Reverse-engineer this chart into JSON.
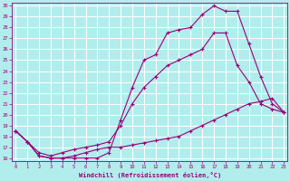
{
  "xlabel": "Windchill (Refroidissement éolien,°C)",
  "bg_color": "#b2eded",
  "grid_color": "#d0d0d0",
  "line_color": "#990077",
  "xmin": 0,
  "xmax": 23,
  "ymin": 16,
  "ymax": 30,
  "curve1_x": [
    0,
    1,
    2,
    3,
    4,
    5,
    6,
    7,
    8,
    9,
    10,
    11,
    12,
    13,
    14,
    15,
    16,
    17,
    18,
    19,
    20,
    21,
    22,
    23
  ],
  "curve1_y": [
    18.5,
    17.5,
    16.2,
    16.0,
    16.0,
    16.0,
    16.0,
    16.0,
    16.5,
    19.5,
    22.5,
    25.0,
    25.5,
    27.5,
    27.8,
    28.0,
    29.2,
    30.0,
    29.5,
    29.5,
    26.5,
    23.5,
    21.0,
    20.2
  ],
  "curve2_x": [
    0,
    1,
    2,
    3,
    4,
    5,
    6,
    7,
    8,
    9,
    10,
    11,
    12,
    13,
    14,
    15,
    16,
    17,
    18,
    19,
    20,
    21,
    22,
    23
  ],
  "curve2_y": [
    18.5,
    17.5,
    16.5,
    16.2,
    16.5,
    16.8,
    17.0,
    17.2,
    17.5,
    19.0,
    21.0,
    22.5,
    23.5,
    24.5,
    25.0,
    25.5,
    26.0,
    27.5,
    27.5,
    24.5,
    23.0,
    21.0,
    20.5,
    20.2
  ],
  "curve3_x": [
    0,
    1,
    2,
    3,
    4,
    5,
    6,
    7,
    8,
    9,
    10,
    11,
    12,
    13,
    14,
    15,
    16,
    17,
    18,
    19,
    20,
    21,
    22,
    23
  ],
  "curve3_y": [
    18.5,
    17.5,
    16.2,
    16.0,
    16.0,
    16.2,
    16.5,
    16.8,
    17.0,
    17.0,
    17.2,
    17.4,
    17.6,
    17.8,
    18.0,
    18.5,
    19.0,
    19.5,
    20.0,
    20.5,
    21.0,
    21.2,
    21.5,
    20.2
  ]
}
